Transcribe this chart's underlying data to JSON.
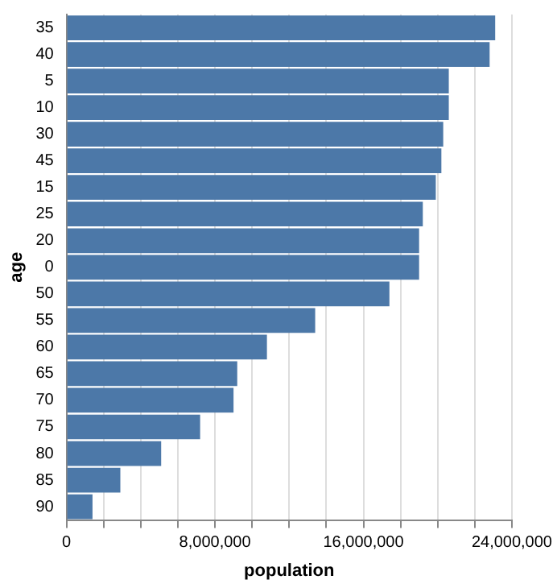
{
  "chart_data": {
    "type": "bar",
    "orientation": "horizontal",
    "xlabel": "population",
    "ylabel": "age",
    "categories": [
      "35",
      "40",
      "5",
      "10",
      "30",
      "45",
      "15",
      "25",
      "20",
      "0",
      "50",
      "55",
      "60",
      "65",
      "70",
      "75",
      "80",
      "85",
      "90"
    ],
    "values": [
      23100000,
      22800000,
      20600000,
      20600000,
      20300000,
      20200000,
      19900000,
      19200000,
      19000000,
      19000000,
      17400000,
      13400000,
      10800000,
      9200000,
      9000000,
      7200000,
      5100000,
      2900000,
      1400000
    ],
    "color": "#4c78a8",
    "xlim": [
      0,
      24000000
    ],
    "xticks": [
      0,
      {
        "value": 2000000,
        "label": null
      },
      {
        "value": 4000000,
        "label": null
      },
      {
        "value": 6000000,
        "label": null
      },
      {
        "value": 8000000,
        "label": "8,000,000"
      },
      {
        "value": 10000000,
        "label": null
      },
      {
        "value": 12000000,
        "label": null
      },
      {
        "value": 14000000,
        "label": null
      },
      {
        "value": 16000000,
        "label": "16,000,000"
      },
      {
        "value": 18000000,
        "label": null
      },
      {
        "value": 20000000,
        "label": null
      },
      {
        "value": 22000000,
        "label": null
      },
      {
        "value": 24000000,
        "label": "24,000,000"
      }
    ],
    "grid": "x",
    "legend": false
  }
}
